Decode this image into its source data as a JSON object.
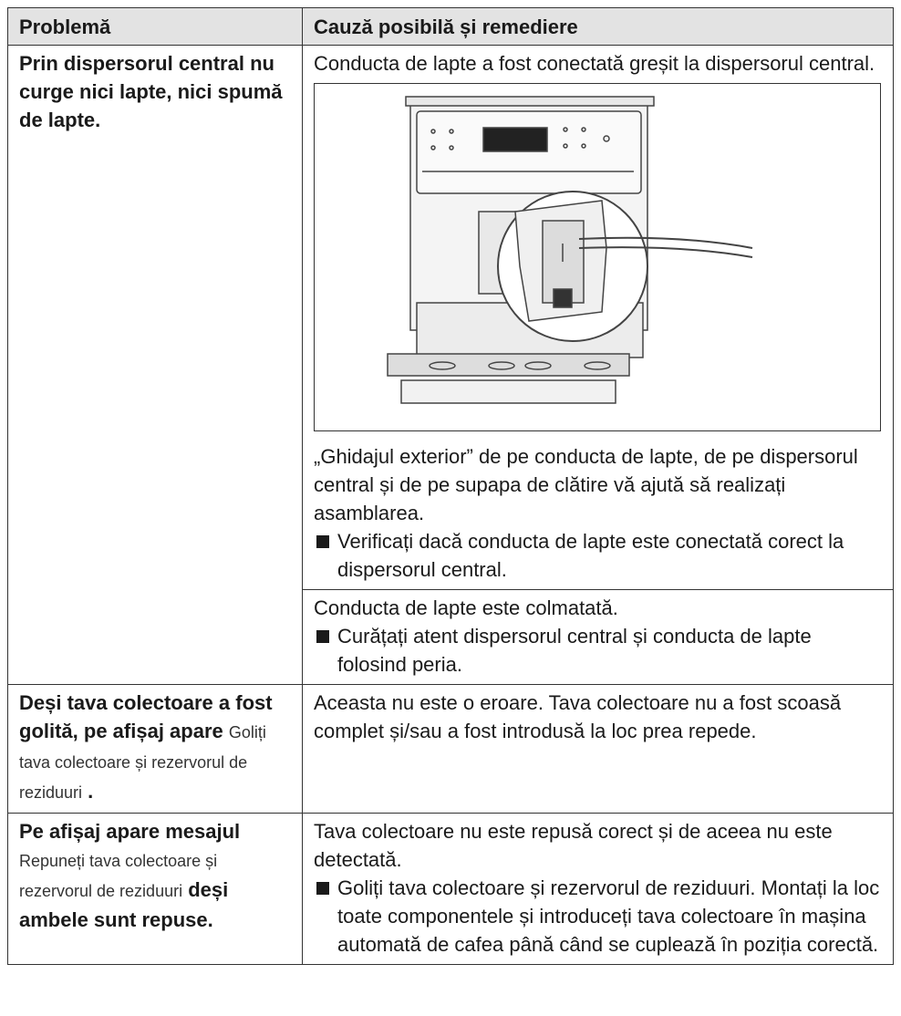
{
  "table": {
    "header": [
      "Problemă",
      "Cauză posibilă și remediere"
    ],
    "rows": [
      {
        "problem": [
          {
            "text": "Prin dispersorul central nu curge nici lapte, nici spumă de lapte.",
            "bold": true
          }
        ],
        "causes": [
          {
            "intro": "Conducta de lapte a fost conectată greșit la dispersorul central.",
            "paragraphs": [
              "„Ghidajul exterior” de pe conducta de lapte, de pe dispersorul central și de pe supapa de clătire vă ajută să realizați asamblarea."
            ],
            "bullets": [
              "Verificați dacă conducta de lapte este conectată corect la dispersorul central."
            ]
          },
          {
            "paragraphs": [
              "Conducta de lapte este colmatată."
            ],
            "bullets": [
              "Curățați atent dispersorul central și conducta de lapte folosind peria."
            ]
          }
        ]
      },
      {
        "problem": [
          {
            "text": "Deși tava colectoare a fost golită, pe afișaj apare",
            "bold": true
          },
          {
            "text": "Goliți tava colectoare și rezervorul de reziduuri",
            "bold": false
          },
          {
            "text": ".",
            "bold": true
          }
        ],
        "causes": [
          {
            "paragraphs": [
              "Aceasta nu este o eroare. Tava colectoare nu a fost scoasă complet și/sau a fost introdusă la loc prea repede."
            ],
            "bullets": []
          }
        ]
      },
      {
        "problem": [
          {
            "text": "Pe afișaj apare mesajul",
            "bold": true
          },
          {
            "text": "Repuneți tava colectoare și rezervorul de reziduuri",
            "bold": false
          },
          {
            "text": "deși ambele sunt repuse.",
            "bold": true
          }
        ],
        "causes": [
          {
            "paragraphs": [
              "Tava colectoare nu este repusă corect și de aceea nu este detectată."
            ],
            "bullets": [
              "Goliți tava colectoare și rezervorul de reziduuri. Montați la loc toate componentele și introduceți tava colectoare în mașina automată de cafea până când se cuplează în poziția corectă."
            ]
          }
        ]
      }
    ]
  }
}
